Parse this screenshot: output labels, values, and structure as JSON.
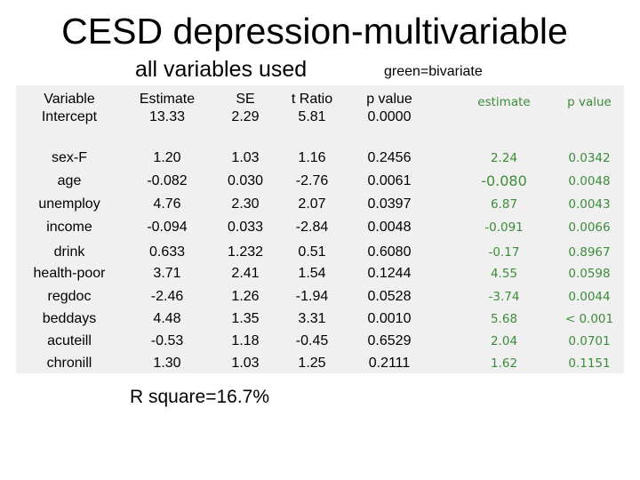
{
  "title": "CESD depression-multivariable",
  "subtitle": "all variables used",
  "green_note": "green=bivariate",
  "headers": {
    "variable": "Variable",
    "estimate": "Estimate",
    "se": "SE",
    "t_ratio": "t Ratio",
    "p_value": "p value",
    "biv_estimate": "estimate",
    "biv_p_value": "p value"
  },
  "rows": [
    {
      "variable": "Intercept",
      "estimate": "13.33",
      "se": "2.29",
      "t_ratio": "5.81",
      "p_value": "0.0000",
      "biv_estimate": "",
      "biv_p_value": ""
    },
    {
      "variable": "sex-F",
      "estimate": "1.20",
      "se": "1.03",
      "t_ratio": "1.16",
      "p_value": "0.2456",
      "biv_estimate": "2.24",
      "biv_p_value": "0.0342"
    },
    {
      "variable": "age",
      "estimate": "-0.082",
      "se": "0.030",
      "t_ratio": "-2.76",
      "p_value": "0.0061",
      "biv_estimate": "-0.080",
      "biv_p_value": "0.0048"
    },
    {
      "variable": "unemploy",
      "estimate": "4.76",
      "se": "2.30",
      "t_ratio": "2.07",
      "p_value": "0.0397",
      "biv_estimate": "6.87",
      "biv_p_value": "0.0043"
    },
    {
      "variable": "income",
      "estimate": "-0.094",
      "se": "0.033",
      "t_ratio": "-2.84",
      "p_value": "0.0048",
      "biv_estimate": "-0.091",
      "biv_p_value": "0.0066"
    },
    {
      "variable": "drink",
      "estimate": "0.633",
      "se": "1.232",
      "t_ratio": "0.51",
      "p_value": "0.6080",
      "biv_estimate": "-0.17",
      "biv_p_value": "0.8967"
    },
    {
      "variable": "health-poor",
      "estimate": "3.71",
      "se": "2.41",
      "t_ratio": "1.54",
      "p_value": "0.1244",
      "biv_estimate": "4.55",
      "biv_p_value": "0.0598"
    },
    {
      "variable": "regdoc",
      "estimate": "-2.46",
      "se": "1.26",
      "t_ratio": "-1.94",
      "p_value": "0.0528",
      "biv_estimate": "-3.74",
      "biv_p_value": "0.0044"
    },
    {
      "variable": "beddays",
      "estimate": "4.48",
      "se": "1.35",
      "t_ratio": "3.31",
      "p_value": "0.0010",
      "biv_estimate": "5.68",
      "biv_p_value": "< 0.001"
    },
    {
      "variable": "acuteill",
      "estimate": "-0.53",
      "se": "1.18",
      "t_ratio": "-0.45",
      "p_value": "0.6529",
      "biv_estimate": "2.04",
      "biv_p_value": "0.0701"
    },
    {
      "variable": "chronill",
      "estimate": "1.30",
      "se": "1.03",
      "t_ratio": "1.25",
      "p_value": "0.2111",
      "biv_estimate": "1.62",
      "biv_p_value": "0.1151"
    }
  ],
  "r_square": "R square=16.7%",
  "colors": {
    "green": "#3c8c3a",
    "table_bg": "#f0f0f0"
  }
}
